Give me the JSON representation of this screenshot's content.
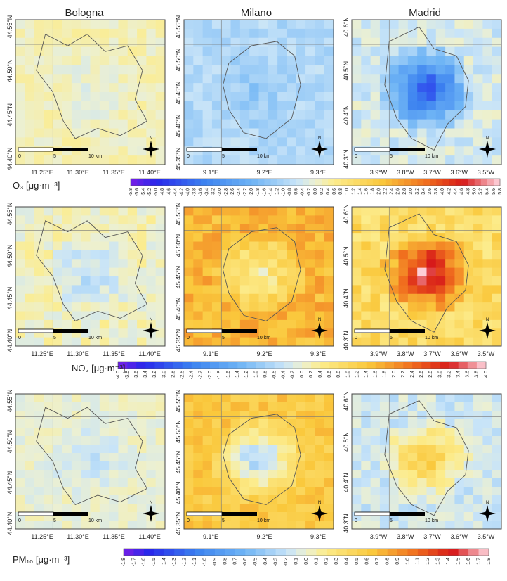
{
  "chart_data": {
    "type": "heatmap",
    "cities": [
      "Bologna",
      "Milano",
      "Madrid"
    ],
    "ticks": {
      "Bologna": {
        "lat": [
          "44.55°N",
          "44.50°N",
          "44.45°N",
          "44.40°N"
        ],
        "lon": [
          "11.25°E",
          "11.30°E",
          "11.35°E",
          "11.40°E"
        ]
      },
      "Milano": {
        "lat": [
          "45.55°N",
          "45.50°N",
          "45.45°N",
          "45.40°N",
          "45.35°N"
        ],
        "lon": [
          "9.1°E",
          "9.2°E",
          "9.3°E"
        ]
      },
      "Madrid": {
        "lat": [
          "40.6°N",
          "40.5°N",
          "40.4°N",
          "40.3°N"
        ],
        "lon": [
          "3.9°W",
          "3.8°W",
          "3.7°W",
          "3.6°W",
          "3.5°W"
        ]
      }
    },
    "scalebar": {
      "labels": [
        "0",
        "5",
        "10 km"
      ]
    },
    "north_label": "N",
    "rows": [
      {
        "pollutant": "O3",
        "label": "O₃ [μg·m⁻³]",
        "colorbar": {
          "min": -5.8,
          "max": 5.8,
          "step": 0.2,
          "ticks": [
            "-5.8",
            "-5.6",
            "-5.4",
            "-5.2",
            "-5.0",
            "-4.8",
            "-4.6",
            "-4.4",
            "-4.2",
            "-4.0",
            "-3.8",
            "-3.6",
            "-3.4",
            "-3.2",
            "-3.0",
            "-2.8",
            "-2.6",
            "-2.4",
            "-2.2",
            "-2.0",
            "-1.8",
            "-1.6",
            "-1.4",
            "-1.2",
            "-1.0",
            "-0.8",
            "-0.6",
            "-0.4",
            "-0.2",
            "0.0",
            "0.2",
            "0.4",
            "0.6",
            "0.8",
            "1.0",
            "1.2",
            "1.4",
            "1.6",
            "1.8",
            "2.0",
            "2.2",
            "2.4",
            "2.6",
            "2.8",
            "3.0",
            "3.2",
            "3.4",
            "3.6",
            "3.8",
            "4.0",
            "4.2",
            "4.4",
            "4.6",
            "4.8",
            "5.0",
            "5.2",
            "5.4",
            "5.6",
            "5.8"
          ]
        },
        "cells": {
          "Bologna": {
            "base": 0.2,
            "city_effect": -0.4,
            "noise": 0.3
          },
          "Milano": {
            "base": -0.9,
            "city_effect": -0.5,
            "noise": 0.4
          },
          "Madrid": {
            "base": -0.4,
            "city_effect": -4.6,
            "noise": 0.5
          }
        }
      },
      {
        "pollutant": "NO2",
        "label": "NO₂ [μg·m⁻³]",
        "colorbar": {
          "min": -4.0,
          "max": 4.0,
          "step": 0.2,
          "ticks": [
            "-4.0",
            "-3.8",
            "-3.6",
            "-3.4",
            "-3.2",
            "-3.0",
            "-2.8",
            "-2.6",
            "-2.4",
            "-2.2",
            "-2.0",
            "-1.8",
            "-1.6",
            "-1.4",
            "-1.2",
            "-1.0",
            "-0.8",
            "-0.6",
            "-0.4",
            "-0.2",
            "0.0",
            "0.2",
            "0.4",
            "0.6",
            "0.8",
            "1.0",
            "1.2",
            "1.4",
            "1.6",
            "1.8",
            "2.0",
            "2.2",
            "2.4",
            "2.6",
            "2.8",
            "3.0",
            "3.2",
            "3.4",
            "3.6",
            "3.8",
            "4.0"
          ]
        },
        "cells": {
          "Bologna": {
            "base": 0.1,
            "city_effect": -0.7,
            "noise": 0.3
          },
          "Milano": {
            "base": 1.6,
            "city_effect": -1.4,
            "noise": 0.4
          },
          "Madrid": {
            "base": 0.9,
            "city_effect": 2.9,
            "noise": 0.5
          }
        }
      },
      {
        "pollutant": "PM10",
        "label": "PM₁₀ [μg·m⁻³]",
        "colorbar": {
          "min": -1.8,
          "max": 1.8,
          "step": 0.1,
          "ticks": [
            "-1.8",
            "-1.7",
            "-1.6",
            "-1.5",
            "-1.4",
            "-1.3",
            "-1.2",
            "-1.1",
            "-1.0",
            "-0.9",
            "-0.8",
            "-0.7",
            "-0.6",
            "-0.5",
            "-0.4",
            "-0.3",
            "-0.2",
            "-0.1",
            "0.0",
            "0.1",
            "0.2",
            "0.3",
            "0.4",
            "0.5",
            "0.6",
            "0.7",
            "0.8",
            "0.9",
            "1.0",
            "1.1",
            "1.2",
            "1.3",
            "1.4",
            "1.5",
            "1.6",
            "1.7",
            "1.8"
          ]
        },
        "cells": {
          "Bologna": {
            "base": 0.0,
            "city_effect": -0.2,
            "noise": 0.1
          },
          "Milano": {
            "base": 0.6,
            "city_effect": -1.0,
            "noise": 0.15
          },
          "Madrid": {
            "base": -0.15,
            "city_effect": 0.8,
            "noise": 0.15
          }
        }
      }
    ]
  }
}
